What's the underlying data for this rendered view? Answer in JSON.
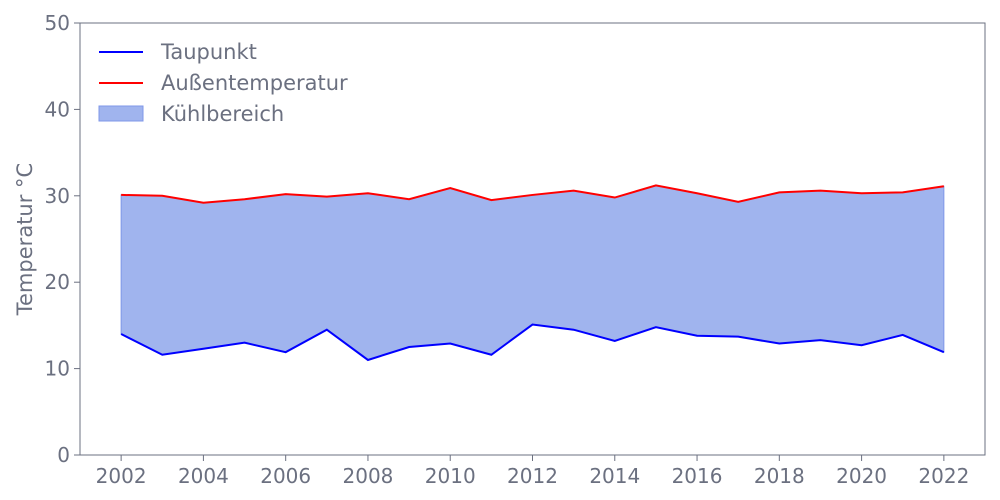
{
  "chart_data": {
    "type": "area",
    "title": "",
    "xlabel": "",
    "ylabel": "Temperatur °C",
    "xlim": [
      2001,
      2023
    ],
    "ylim": [
      0,
      50
    ],
    "xticks": [
      2002,
      2004,
      2006,
      2008,
      2010,
      2012,
      2014,
      2016,
      2018,
      2020,
      2022
    ],
    "yticks": [
      0,
      10,
      20,
      30,
      40,
      50
    ],
    "grid": false,
    "legend_position": "top-left",
    "x": [
      2002,
      2003,
      2004,
      2005,
      2006,
      2007,
      2008,
      2009,
      2010,
      2011,
      2012,
      2013,
      2014,
      2015,
      2016,
      2017,
      2018,
      2019,
      2020,
      2021,
      2022
    ],
    "series": [
      {
        "name": "Taupunkt",
        "type": "line",
        "color": "#0000ff",
        "values": [
          14.0,
          11.6,
          12.3,
          13.0,
          11.9,
          14.5,
          11.0,
          12.5,
          12.9,
          11.6,
          15.1,
          14.5,
          13.2,
          14.8,
          13.8,
          13.7,
          12.9,
          13.3,
          12.7,
          13.9,
          11.9
        ]
      },
      {
        "name": "Außentemperatur",
        "type": "line",
        "color": "#ff0000",
        "values": [
          30.1,
          30.0,
          29.2,
          29.6,
          30.2,
          29.9,
          30.3,
          29.6,
          30.9,
          29.5,
          30.1,
          30.6,
          29.8,
          31.2,
          30.3,
          29.3,
          30.4,
          30.6,
          30.3,
          30.4,
          31.1
        ]
      },
      {
        "name": "Kühlbereich",
        "type": "fill_between",
        "color": "#a0b4ee",
        "edge_color": "#7f97e8",
        "between": [
          "Taupunkt",
          "Außentemperatur"
        ]
      }
    ]
  }
}
